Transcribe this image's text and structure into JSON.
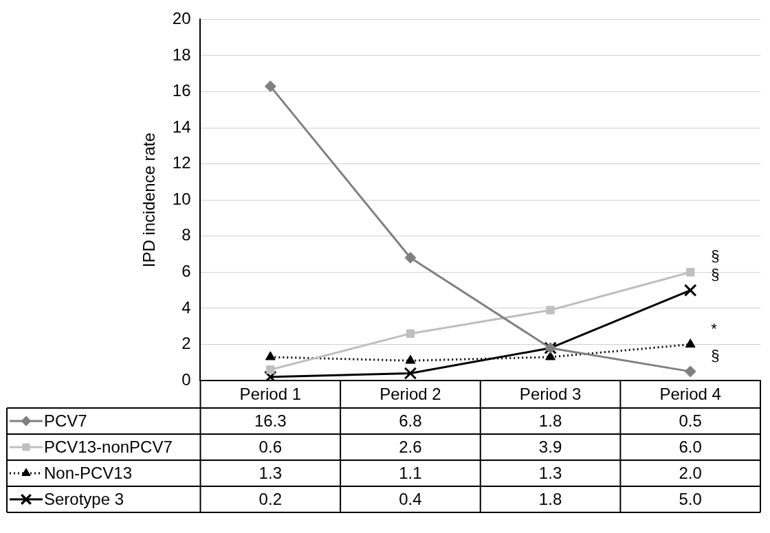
{
  "chart_data": {
    "type": "line",
    "ylabel": "IPD incidence rate",
    "categories": [
      "Period 1",
      "Period 2",
      "Period 3",
      "Period 4"
    ],
    "series": [
      {
        "name": "PCV7",
        "color": "#808080",
        "marker": "diamond",
        "line_style": "solid",
        "values": [
          16.3,
          6.8,
          1.8,
          0.5
        ],
        "value_labels": [
          "16.3",
          "6.8",
          "1.8",
          "0.5"
        ]
      },
      {
        "name": "PCV13-nonPCV7",
        "color": "#bfbfbf",
        "marker": "square",
        "line_style": "solid",
        "values": [
          0.6,
          2.6,
          3.9,
          6.0
        ],
        "value_labels": [
          "0.6",
          "2.6",
          "3.9",
          "6.0"
        ]
      },
      {
        "name": "Non-PCV13",
        "color": "#000000",
        "marker": "triangle",
        "line_style": "dotted",
        "values": [
          1.3,
          1.1,
          1.3,
          2.0
        ],
        "value_labels": [
          "1.3",
          "1.1",
          "1.3",
          "2.0"
        ]
      },
      {
        "name": "Serotype 3",
        "color": "#000000",
        "marker": "cross",
        "line_style": "solid",
        "values": [
          0.2,
          0.4,
          1.8,
          5.0
        ],
        "value_labels": [
          "0.2",
          "0.4",
          "1.8",
          "5.0"
        ]
      }
    ],
    "ylim": [
      0,
      20
    ],
    "yticks": [
      0,
      2,
      4,
      6,
      8,
      10,
      12,
      14,
      16,
      18,
      20
    ],
    "grid": "y",
    "legend": "bottom",
    "annotations": [
      {
        "text": "§",
        "x": "Period 4",
        "y": 6.0
      },
      {
        "text": "§",
        "x": "Period 4",
        "y": 5.0
      },
      {
        "text": "*",
        "x": "Period 4",
        "y": 2.0
      },
      {
        "text": "§",
        "x": "Period 4",
        "y": 0.5
      }
    ]
  }
}
